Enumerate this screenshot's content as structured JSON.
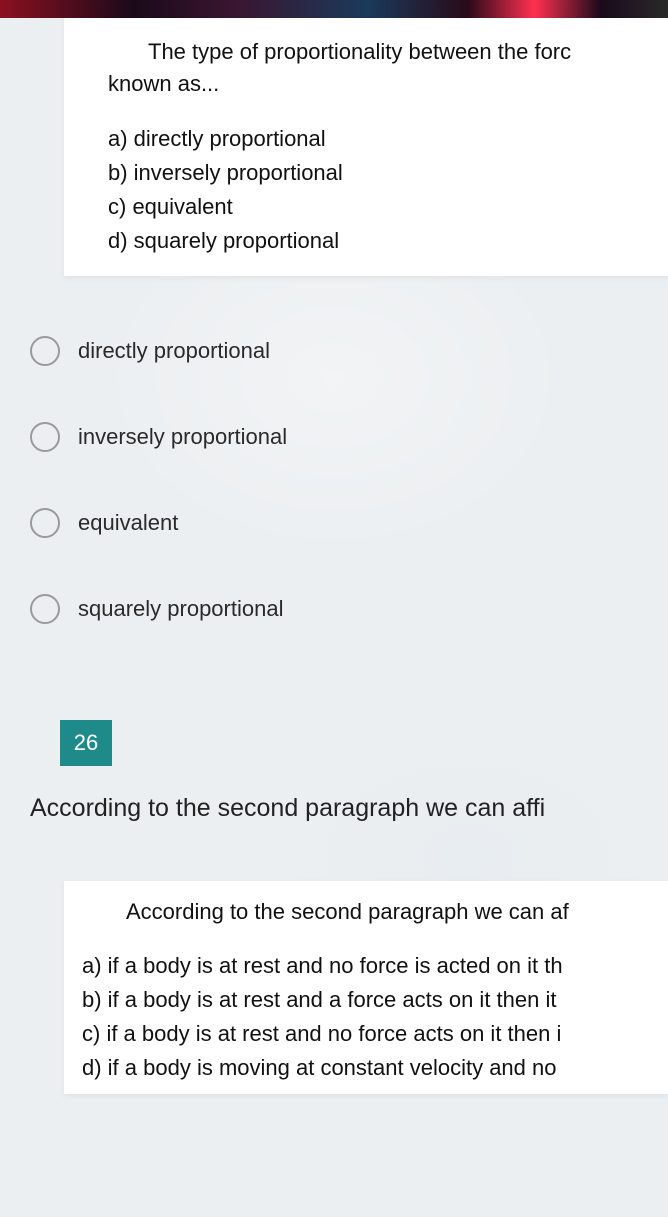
{
  "colors": {
    "page_bg": "#eceff1",
    "card_bg": "#ffffff",
    "text": "#111111",
    "answer_text": "#2a2a2a",
    "radio_border": "#9a9a9a",
    "badge_bg": "#1e8a8a",
    "badge_text": "#ffffff"
  },
  "question25": {
    "stem_line1": "The type of proportionality between the forc",
    "stem_line2": "known as...",
    "options": {
      "a": "a) directly proportional",
      "b": "b) inversely proportional",
      "c": "c) equivalent",
      "d": "d) squarely proportional"
    }
  },
  "answers25": {
    "a": "directly proportional",
    "b": "inversely proportional",
    "c": "equivalent",
    "d": "squarely proportional"
  },
  "question26": {
    "number": "26",
    "title": "According to the second paragraph we can affi",
    "stem": "According to the second paragraph we can af",
    "options": {
      "a": "a) if a body is at rest and no force is acted on it th",
      "b": "b) if a body is at rest and a force acts on it then it",
      "c": "c) if a body is at rest and no force acts on it then i",
      "d": "d) if a body is moving at constant velocity and no"
    }
  }
}
